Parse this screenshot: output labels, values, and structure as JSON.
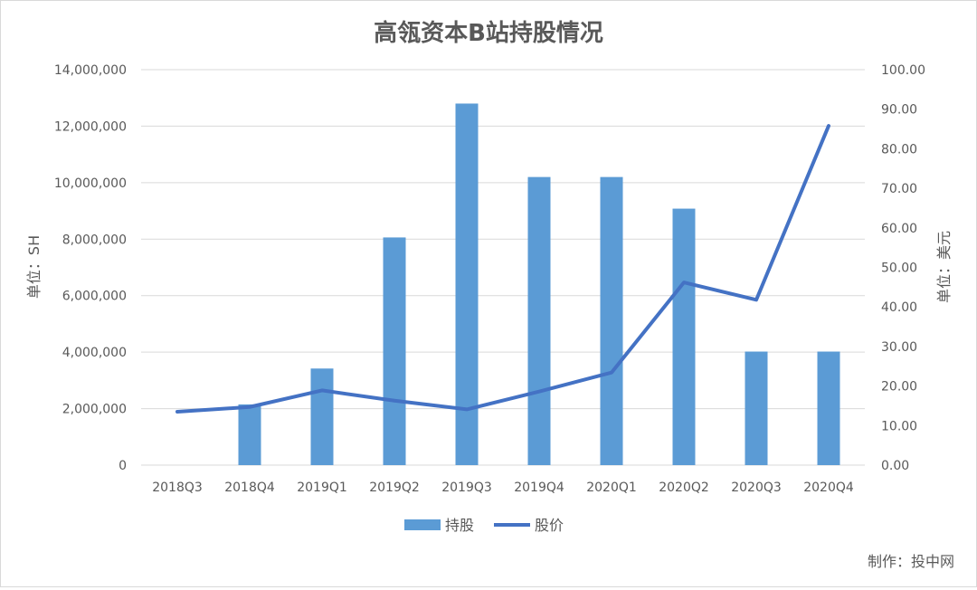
{
  "chart_data": {
    "type": "bar",
    "title": "高瓴资本B站持股情况",
    "categories": [
      "2018Q3",
      "2018Q4",
      "2019Q1",
      "2019Q2",
      "2019Q3",
      "2019Q4",
      "2020Q1",
      "2020Q2",
      "2020Q3",
      "2020Q4"
    ],
    "series": [
      {
        "name": "持股",
        "type": "bar",
        "axis": "left",
        "color": "#5b9bd5",
        "values": [
          0,
          2150000,
          3420000,
          8060000,
          12800000,
          10200000,
          10200000,
          9080000,
          4020000,
          4020000
        ]
      },
      {
        "name": "股价",
        "type": "line",
        "axis": "right",
        "color": "#4472c4",
        "values": [
          13.5,
          14.7,
          18.9,
          16.3,
          14.1,
          18.6,
          23.4,
          46.2,
          41.8,
          85.8
        ]
      }
    ],
    "ylabel": "单位：SH",
    "y2label": "单位：美元",
    "ylim": [
      0,
      14000000
    ],
    "y2lim": [
      0,
      100
    ],
    "yticks": [
      "0",
      "2,000,000",
      "4,000,000",
      "6,000,000",
      "8,000,000",
      "10,000,000",
      "12,000,000",
      "14,000,000"
    ],
    "y2ticks": [
      "0.00",
      "10.00",
      "20.00",
      "30.00",
      "40.00",
      "50.00",
      "60.00",
      "70.00",
      "80.00",
      "90.00",
      "100.00"
    ],
    "grid": true,
    "legend_position": "bottom"
  },
  "footer": {
    "credit": "制作：投中网"
  }
}
